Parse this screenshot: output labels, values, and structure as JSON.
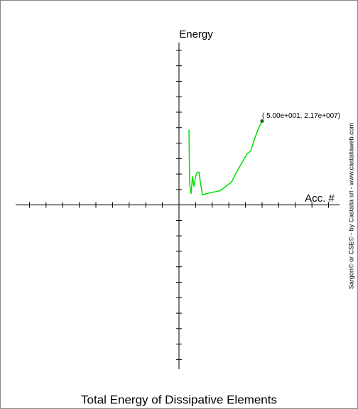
{
  "chart_data": {
    "type": "line",
    "title": "Total Energy of Dissipative Elements",
    "x_label": "Acc. #",
    "y_label": "Energy",
    "annotation": "( 5.00e+001,  2.17e+007)",
    "watermark": "Sargon© or CSE© - by Castalia srl - www.castaliaweb.com",
    "x": [
      6.0,
      6.4,
      7.3,
      8.1,
      9.0,
      9.8,
      10.7,
      12.0,
      12.8,
      14.1,
      16.2,
      20.5,
      24.8,
      28.2,
      31.6,
      35.0,
      38.5,
      41.0,
      43.2,
      45.3,
      47.9,
      50
    ],
    "series": [
      {
        "color": "#00e000",
        "values": [
          19500000,
          5500000,
          2900000,
          7400000,
          4800000,
          7000000,
          8300000,
          8500000,
          6100000,
          2600000,
          2900000,
          3300000,
          3700000,
          4800000,
          5900000,
          8800000,
          11400000,
          13200000,
          14000000,
          16900000,
          19900000,
          21700000
        ]
      }
    ],
    "xlim": [
      -98.3,
      96.6
    ],
    "xticks": [
      -90,
      -80,
      -70,
      -60,
      -50,
      -40,
      -30,
      -20,
      -10,
      10,
      20,
      30,
      40,
      50,
      60,
      70,
      80,
      90
    ],
    "ylim": [
      -42500000,
      42000000
    ],
    "yticks": [
      -40000000,
      -36000000,
      -32000000,
      -28000000,
      -24000000,
      -20000000,
      -16000000,
      -12000000,
      -8000000,
      -4000000,
      4000000,
      8000000,
      12000000,
      16000000,
      20000000,
      24000000,
      28000000,
      32000000,
      36000000,
      40000000
    ]
  }
}
